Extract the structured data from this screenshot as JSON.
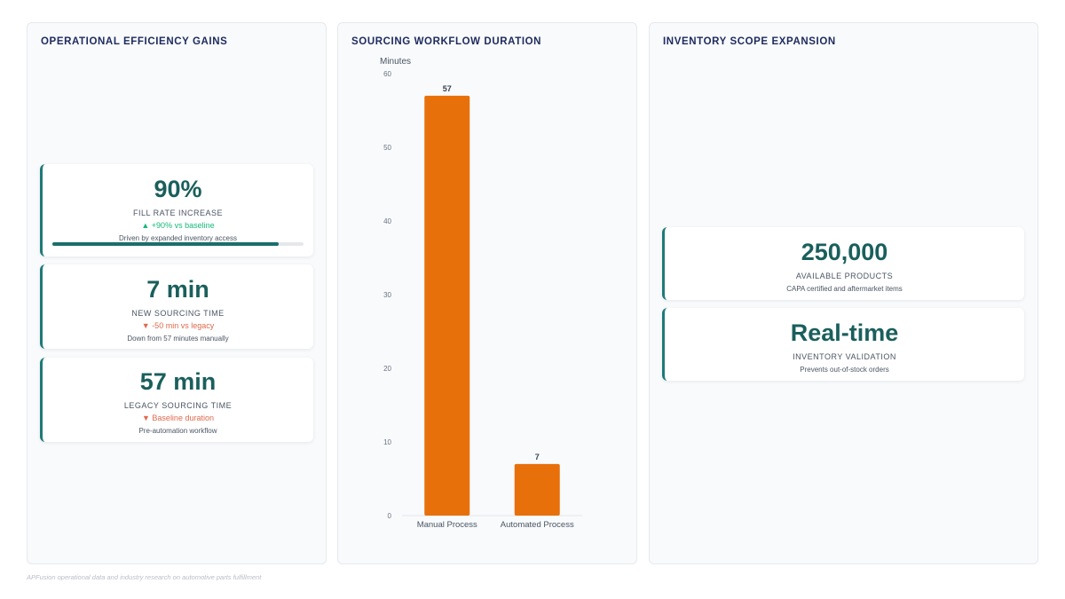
{
  "panels": {
    "left": {
      "title": "OPERATIONAL EFFICIENCY GAINS",
      "cards": [
        {
          "value": "90%",
          "label": "FILL RATE INCREASE",
          "delta": "▲ +90% vs baseline",
          "desc": "Driven by expanded inventory access",
          "progress": 0.9
        },
        {
          "value": "7 min",
          "label": "NEW SOURCING TIME",
          "delta": "▼ -50 min vs legacy",
          "desc": "Down from 57 minutes manually"
        },
        {
          "value": "57 min",
          "label": "LEGACY SOURCING TIME",
          "delta": "▼ Baseline duration",
          "desc": "Pre-automation workflow"
        }
      ]
    },
    "middle": {
      "title": "SOURCING WORKFLOW DURATION"
    },
    "right": {
      "title": "INVENTORY SCOPE EXPANSION",
      "cards": [
        {
          "value": "250,000",
          "label": "AVAILABLE PRODUCTS",
          "desc": "CAPA certified and aftermarket items"
        },
        {
          "value": "Real-time",
          "label": "INVENTORY VALIDATION",
          "desc": "Prevents out-of-stock orders"
        }
      ]
    }
  },
  "chart_data": {
    "type": "bar",
    "title": "SOURCING WORKFLOW DURATION",
    "ylabel": "Minutes",
    "xlabel": "",
    "categories": [
      "Manual Process",
      "Automated Process"
    ],
    "values": [
      57,
      7
    ],
    "ylim": [
      0,
      60
    ],
    "yticks": [
      0,
      10,
      20,
      30,
      40,
      50,
      60
    ],
    "data_labels": true,
    "grid": false,
    "bar_color": "#e8700a"
  },
  "colors": {
    "accent": "#1a5f5c",
    "positive": "#14b87a",
    "negative": "#e0694d",
    "bar": "#e8700a",
    "title": "#1e2a5e"
  },
  "footer": "APFusion operational data and industry research on automotive parts fulfillment"
}
